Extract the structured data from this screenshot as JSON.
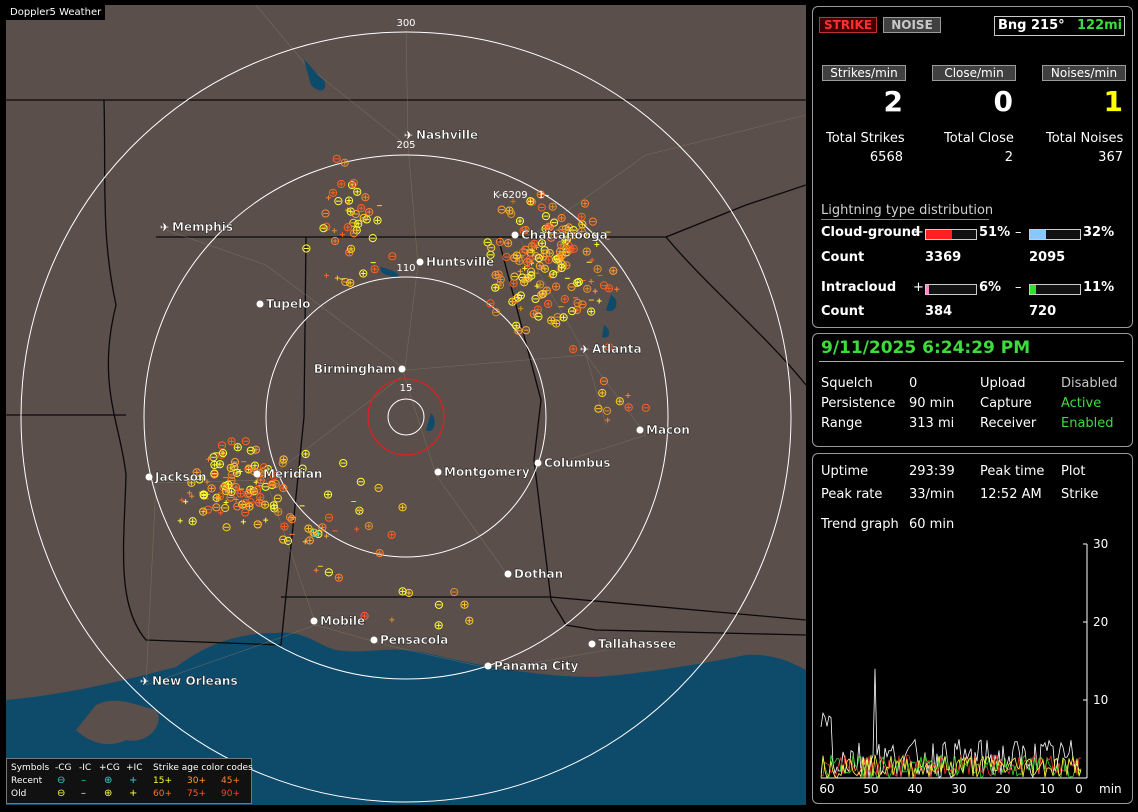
{
  "app": {
    "title": "Doppler5 Weather"
  },
  "map": {
    "range_labels": [
      "300",
      "205",
      "110",
      "15"
    ],
    "station_label": "K-6209",
    "station_mark": "1–",
    "cities": [
      {
        "name": "Nashville",
        "airport": true
      },
      {
        "name": "Memphis",
        "airport": true
      },
      {
        "name": "Chattanooga",
        "airport": false
      },
      {
        "name": "Huntsville",
        "airport": false
      },
      {
        "name": "Tupelo",
        "airport": false
      },
      {
        "name": "Atlanta",
        "airport": true
      },
      {
        "name": "Birmingham",
        "airport": false
      },
      {
        "name": "Macon",
        "airport": false
      },
      {
        "name": "Jackson",
        "airport": false
      },
      {
        "name": "Meridian",
        "airport": false
      },
      {
        "name": "Montgomery",
        "airport": false
      },
      {
        "name": "Columbus",
        "airport": false
      },
      {
        "name": "Dothan",
        "airport": false
      },
      {
        "name": "Mobile",
        "airport": false
      },
      {
        "name": "Pensacola",
        "airport": false
      },
      {
        "name": "Tallahassee",
        "airport": false
      },
      {
        "name": "Panama City",
        "airport": false
      },
      {
        "name": "New Orleans",
        "airport": true
      }
    ],
    "legend": {
      "symbols_label": "Symbols",
      "cg_neg": "-CG",
      "ic_neg": "-IC",
      "cg_pos": "+CG",
      "ic_pos": "+IC",
      "age_label": "Strike age color codes",
      "recent_label": "Recent",
      "old_label": "Old",
      "recent_ages": [
        "15+",
        "30+",
        "45+"
      ],
      "old_ages": [
        "60+",
        "75+",
        "90+"
      ]
    }
  },
  "header": {
    "strike_btn": "STRIKE",
    "noise_btn": "NOISE",
    "bearing": "Bng 215°",
    "distance": "122mi"
  },
  "rates": {
    "strikes_label": "Strikes/min",
    "close_label": "Close/min",
    "noises_label": "Noises/min",
    "strikes": "2",
    "close": "0",
    "noises": "1",
    "total_strikes_label": "Total Strikes",
    "total_close_label": "Total Close",
    "total_noises_label": "Total Noises",
    "total_strikes": "6568",
    "total_close": "2",
    "total_noises": "367"
  },
  "distribution": {
    "title": "Lightning type distribution",
    "cg_label": "Cloud-ground",
    "ic_label": "Intracloud",
    "count_label": "Count",
    "plus": "+",
    "minus": "–",
    "cg_pos_pct": "51%",
    "cg_neg_pct": "32%",
    "ic_pos_pct": "6%",
    "ic_neg_pct": "11%",
    "cg_pos_count": "3369",
    "cg_neg_count": "2095",
    "ic_pos_count": "384",
    "ic_neg_count": "720",
    "cg_pos_fill": 0.51,
    "cg_neg_fill": 0.32,
    "ic_pos_fill": 0.06,
    "ic_neg_fill": 0.11
  },
  "status": {
    "datetime": "9/11/2025 6:24:29 PM",
    "squelch_label": "Squelch",
    "squelch": "0",
    "persistence_label": "Persistence",
    "persistence": "90 min",
    "range_label": "Range",
    "range": "313 mi",
    "upload_label": "Upload",
    "upload": "Disabled",
    "capture_label": "Capture",
    "capture": "Active",
    "receiver_label": "Receiver",
    "receiver": "Enabled"
  },
  "trend": {
    "uptime_label": "Uptime",
    "uptime": "293:39",
    "peak_time_label": "Peak time",
    "peak_time": "12:52 AM",
    "plot_label": "Plot",
    "plot": "Strike",
    "peak_rate_label": "Peak rate",
    "peak_rate": "33/min",
    "trend_label": "Trend graph",
    "trend_value": "60 min",
    "y_ticks": [
      "30",
      "20",
      "10"
    ],
    "x_ticks": [
      "60",
      "50",
      "40",
      "30",
      "20",
      "10",
      "0"
    ],
    "x_unit": "min"
  },
  "colors": {
    "accent_green": "#3ddc3d",
    "noise_yellow": "#ffff00",
    "cg_pos": "#ff2020",
    "cg_neg": "#88c8ff",
    "ic_pos": "#ff88cc",
    "ic_neg": "#33dd33",
    "strike_btn": "#ff3030"
  }
}
